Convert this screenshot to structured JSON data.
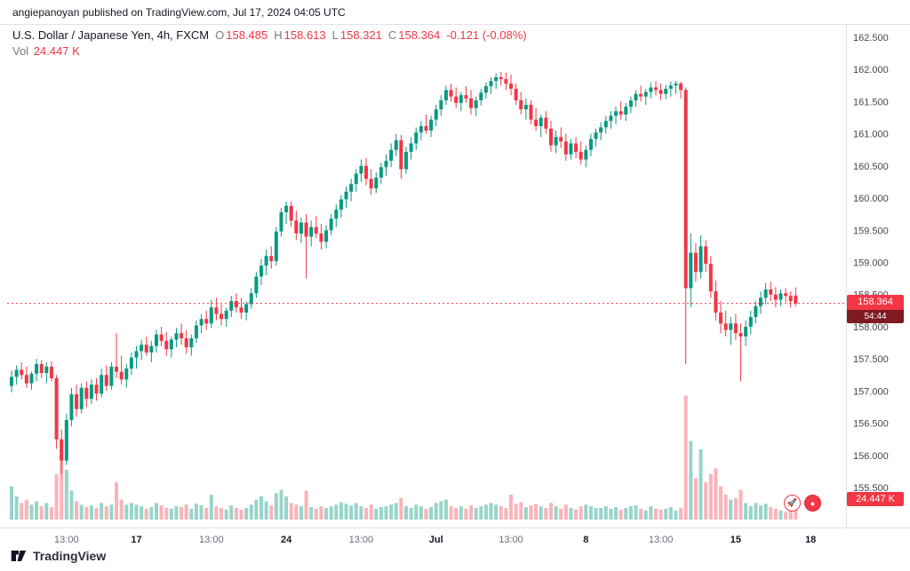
{
  "header": {
    "publish_line": "angiepanoyan published on TradingView.com, Jul 17, 2024 04:05 UTC"
  },
  "legend": {
    "title": "U.S. Dollar / Japanese Yen, 4h, FXCM",
    "o_label": "O",
    "o": "158.485",
    "h_label": "H",
    "h": "158.613",
    "l_label": "L",
    "l": "158.321",
    "c_label": "C",
    "c": "158.364",
    "change": "-0.121 (-0.08%)",
    "volume_label": "Vol",
    "volume_value": "24.447 K"
  },
  "badges": {
    "price": "158.364",
    "countdown": "54:44",
    "volume": "24.447 K"
  },
  "footer": {
    "brand": "TradingView"
  },
  "colors": {
    "up": "#089981",
    "down": "#f23645",
    "volume_up": "rgba(8,153,129,0.42)",
    "volume_down": "rgba(242,54,69,0.38)",
    "border": "#e0e3eb",
    "countdown_bg": "#7e1a22",
    "text_primary": "#131722",
    "text_secondary": "#787b86"
  },
  "chart_data": {
    "type": "candlestick",
    "symbol": "U.S. Dollar / Japanese Yen",
    "ticker": "USDJPY",
    "interval": "4h",
    "exchange": "FXCM",
    "last_price": 158.364,
    "ohlc_last": {
      "open": 158.485,
      "high": 158.613,
      "low": 158.321,
      "close": 158.364,
      "change": -0.121,
      "change_pct": -0.08
    },
    "volume_last": 24.447,
    "volume_unit": "K",
    "grid": false,
    "y_axis": {
      "min": 155.5,
      "max": 162.5,
      "step": 0.5,
      "labels": [
        "162.500",
        "162.000",
        "161.500",
        "161.000",
        "160.500",
        "160.000",
        "159.500",
        "159.000",
        "158.500",
        "158.000",
        "157.500",
        "157.000",
        "156.500",
        "156.000",
        "155.500"
      ]
    },
    "x_axis": {
      "labels": [
        {
          "index": 11,
          "text": "13:00",
          "strong": false
        },
        {
          "index": 25,
          "text": "17",
          "strong": true
        },
        {
          "index": 40,
          "text": "13:00",
          "strong": false
        },
        {
          "index": 55,
          "text": "24",
          "strong": true
        },
        {
          "index": 70,
          "text": "13:00",
          "strong": false
        },
        {
          "index": 85,
          "text": "Jul",
          "strong": true
        },
        {
          "index": 100,
          "text": "13:00",
          "strong": false
        },
        {
          "index": 115,
          "text": "8",
          "strong": true
        },
        {
          "index": 130,
          "text": "13:00",
          "strong": false
        },
        {
          "index": 145,
          "text": "15",
          "strong": true
        },
        {
          "index": 160,
          "text": "18",
          "strong": true
        }
      ]
    },
    "candles": [
      [
        157.08,
        157.32,
        156.98,
        157.22,
        40
      ],
      [
        157.22,
        157.4,
        157.1,
        157.33,
        28
      ],
      [
        157.33,
        157.45,
        157.18,
        157.25,
        20
      ],
      [
        157.25,
        157.38,
        157.05,
        157.12,
        24
      ],
      [
        157.12,
        157.3,
        157.02,
        157.27,
        18
      ],
      [
        157.27,
        157.5,
        157.15,
        157.42,
        22
      ],
      [
        157.42,
        157.48,
        157.2,
        157.28,
        16
      ],
      [
        157.28,
        157.45,
        157.12,
        157.38,
        20
      ],
      [
        157.38,
        157.46,
        157.15,
        157.2,
        15
      ],
      [
        157.2,
        157.25,
        156.1,
        156.25,
        55
      ],
      [
        156.25,
        156.4,
        155.7,
        155.92,
        85
      ],
      [
        155.92,
        156.65,
        155.85,
        156.55,
        60
      ],
      [
        156.55,
        157.05,
        156.45,
        156.95,
        35
      ],
      [
        156.95,
        157.1,
        156.6,
        156.72,
        22
      ],
      [
        156.72,
        157.12,
        156.65,
        157.05,
        18
      ],
      [
        157.05,
        157.15,
        156.75,
        156.88,
        15
      ],
      [
        156.88,
        157.18,
        156.8,
        157.1,
        17
      ],
      [
        157.1,
        157.2,
        156.85,
        156.96,
        14
      ],
      [
        156.96,
        157.35,
        156.9,
        157.25,
        20
      ],
      [
        157.25,
        157.4,
        157.0,
        157.08,
        16
      ],
      [
        157.08,
        157.45,
        157.02,
        157.38,
        18
      ],
      [
        157.38,
        157.9,
        157.2,
        157.3,
        45
      ],
      [
        157.3,
        157.55,
        157.1,
        157.18,
        24
      ],
      [
        157.18,
        157.42,
        157.05,
        157.35,
        18
      ],
      [
        157.35,
        157.6,
        157.25,
        157.52,
        20
      ],
      [
        157.52,
        157.7,
        157.35,
        157.62,
        18
      ],
      [
        157.62,
        157.8,
        157.48,
        157.72,
        16
      ],
      [
        157.72,
        157.85,
        157.55,
        157.6,
        13
      ],
      [
        157.6,
        157.78,
        157.45,
        157.7,
        15
      ],
      [
        157.7,
        157.95,
        157.6,
        157.88,
        20
      ],
      [
        157.88,
        158.0,
        157.7,
        157.78,
        17
      ],
      [
        157.78,
        157.92,
        157.55,
        157.65,
        14
      ],
      [
        157.65,
        157.85,
        157.52,
        157.8,
        13
      ],
      [
        157.8,
        157.98,
        157.68,
        157.9,
        16
      ],
      [
        157.9,
        158.05,
        157.72,
        157.82,
        15
      ],
      [
        157.82,
        157.95,
        157.58,
        157.68,
        18
      ],
      [
        157.68,
        157.88,
        157.55,
        157.82,
        13
      ],
      [
        157.82,
        158.1,
        157.75,
        158.02,
        19
      ],
      [
        158.02,
        158.2,
        157.9,
        158.12,
        17
      ],
      [
        158.12,
        158.25,
        157.95,
        158.05,
        14
      ],
      [
        158.05,
        158.42,
        157.98,
        158.3,
        30
      ],
      [
        158.3,
        158.45,
        158.1,
        158.2,
        16
      ],
      [
        158.2,
        158.35,
        158.02,
        158.12,
        14
      ],
      [
        158.12,
        158.3,
        158.0,
        158.25,
        12
      ],
      [
        158.25,
        158.48,
        158.15,
        158.4,
        17
      ],
      [
        158.4,
        158.52,
        158.22,
        158.3,
        14
      ],
      [
        158.3,
        158.45,
        158.12,
        158.22,
        12
      ],
      [
        158.22,
        158.4,
        158.1,
        158.35,
        14
      ],
      [
        158.35,
        158.6,
        158.28,
        158.52,
        18
      ],
      [
        158.52,
        158.85,
        158.45,
        158.78,
        24
      ],
      [
        158.78,
        159.05,
        158.65,
        158.95,
        28
      ],
      [
        158.95,
        159.2,
        158.8,
        159.1,
        22
      ],
      [
        159.1,
        159.25,
        158.9,
        159.02,
        17
      ],
      [
        159.02,
        159.55,
        158.95,
        159.48,
        32
      ],
      [
        159.48,
        159.85,
        159.4,
        159.78,
        36
      ],
      [
        159.78,
        159.95,
        159.6,
        159.88,
        28
      ],
      [
        159.88,
        159.95,
        159.55,
        159.65,
        20
      ],
      [
        159.65,
        159.8,
        159.35,
        159.45,
        18
      ],
      [
        159.45,
        159.7,
        159.3,
        159.62,
        16
      ],
      [
        159.62,
        159.75,
        158.75,
        159.4,
        35
      ],
      [
        159.4,
        159.65,
        159.25,
        159.55,
        15
      ],
      [
        159.55,
        159.72,
        159.38,
        159.45,
        13
      ],
      [
        159.45,
        159.6,
        159.2,
        159.32,
        16
      ],
      [
        159.32,
        159.58,
        159.22,
        159.5,
        14
      ],
      [
        159.5,
        159.75,
        159.42,
        159.68,
        16
      ],
      [
        159.68,
        159.9,
        159.55,
        159.82,
        18
      ],
      [
        159.82,
        160.05,
        159.7,
        159.98,
        21
      ],
      [
        159.98,
        160.18,
        159.85,
        160.1,
        19
      ],
      [
        160.1,
        160.3,
        159.95,
        160.22,
        17
      ],
      [
        160.22,
        160.45,
        160.1,
        160.38,
        20
      ],
      [
        160.38,
        160.6,
        160.25,
        160.5,
        16
      ],
      [
        160.5,
        160.62,
        160.2,
        160.3,
        14
      ],
      [
        160.3,
        160.45,
        160.05,
        160.15,
        18
      ],
      [
        160.15,
        160.4,
        160.08,
        160.32,
        13
      ],
      [
        160.32,
        160.55,
        160.22,
        160.48,
        15
      ],
      [
        160.48,
        160.68,
        160.35,
        160.58,
        16
      ],
      [
        160.58,
        160.85,
        160.48,
        160.75,
        18
      ],
      [
        160.75,
        161.0,
        160.65,
        160.9,
        20
      ],
      [
        160.9,
        160.98,
        160.3,
        160.45,
        26
      ],
      [
        160.45,
        160.8,
        160.38,
        160.72,
        16
      ],
      [
        160.72,
        160.95,
        160.6,
        160.85,
        14
      ],
      [
        160.85,
        161.1,
        160.75,
        161.02,
        18
      ],
      [
        161.02,
        161.2,
        160.9,
        161.12,
        16
      ],
      [
        161.12,
        161.3,
        161.0,
        161.05,
        13
      ],
      [
        161.05,
        161.28,
        160.95,
        161.22,
        15
      ],
      [
        161.22,
        161.45,
        161.12,
        161.38,
        20
      ],
      [
        161.38,
        161.6,
        161.28,
        161.52,
        22
      ],
      [
        161.52,
        161.75,
        161.45,
        161.68,
        24
      ],
      [
        161.68,
        161.78,
        161.5,
        161.58,
        16
      ],
      [
        161.58,
        161.72,
        161.4,
        161.48,
        14
      ],
      [
        161.48,
        161.65,
        161.35,
        161.6,
        16
      ],
      [
        161.6,
        161.74,
        161.48,
        161.55,
        13
      ],
      [
        161.55,
        161.68,
        161.3,
        161.4,
        17
      ],
      [
        161.4,
        161.58,
        161.28,
        161.52,
        14
      ],
      [
        161.52,
        161.7,
        161.44,
        161.64,
        16
      ],
      [
        161.64,
        161.8,
        161.55,
        161.74,
        18
      ],
      [
        161.74,
        161.88,
        161.62,
        161.82,
        20
      ],
      [
        161.82,
        161.94,
        161.7,
        161.88,
        18
      ],
      [
        161.88,
        161.96,
        161.75,
        161.85,
        16
      ],
      [
        161.85,
        161.95,
        161.68,
        161.78,
        14
      ],
      [
        161.78,
        161.92,
        161.6,
        161.7,
        30
      ],
      [
        161.7,
        161.78,
        161.45,
        161.52,
        19
      ],
      [
        161.52,
        161.65,
        161.3,
        161.38,
        21
      ],
      [
        161.38,
        161.55,
        161.22,
        161.45,
        15
      ],
      [
        161.45,
        161.52,
        161.15,
        161.22,
        17
      ],
      [
        161.22,
        161.4,
        161.05,
        161.12,
        19
      ],
      [
        161.12,
        161.3,
        160.95,
        161.25,
        16
      ],
      [
        161.25,
        161.35,
        161.0,
        161.08,
        14
      ],
      [
        161.08,
        161.2,
        160.72,
        160.82,
        20
      ],
      [
        160.82,
        161.05,
        160.7,
        160.95,
        16
      ],
      [
        160.95,
        161.1,
        160.78,
        160.88,
        13
      ],
      [
        160.88,
        161.0,
        160.58,
        160.68,
        18
      ],
      [
        160.68,
        160.92,
        160.6,
        160.85,
        14
      ],
      [
        160.85,
        160.95,
        160.62,
        160.72,
        12
      ],
      [
        160.72,
        160.88,
        160.52,
        160.6,
        16
      ],
      [
        160.6,
        160.82,
        160.48,
        160.75,
        18
      ],
      [
        160.75,
        161.0,
        160.65,
        160.92,
        16
      ],
      [
        160.92,
        161.08,
        160.8,
        161.02,
        14
      ],
      [
        161.02,
        161.18,
        160.9,
        161.1,
        14
      ],
      [
        161.1,
        161.28,
        161.0,
        161.2,
        16
      ],
      [
        161.2,
        161.35,
        161.08,
        161.28,
        13
      ],
      [
        161.28,
        161.42,
        161.15,
        161.35,
        15
      ],
      [
        161.35,
        161.5,
        161.22,
        161.3,
        12
      ],
      [
        161.3,
        161.48,
        161.2,
        161.42,
        14
      ],
      [
        161.42,
        161.58,
        161.32,
        161.52,
        16
      ],
      [
        161.52,
        161.68,
        161.42,
        161.62,
        17
      ],
      [
        161.62,
        161.75,
        161.5,
        161.58,
        13
      ],
      [
        161.58,
        161.7,
        161.45,
        161.65,
        11
      ],
      [
        161.65,
        161.8,
        161.55,
        161.72,
        16
      ],
      [
        161.72,
        161.82,
        161.6,
        161.68,
        13
      ],
      [
        161.68,
        161.78,
        161.52,
        161.62,
        12
      ],
      [
        161.62,
        161.76,
        161.54,
        161.7,
        13
      ],
      [
        161.7,
        161.81,
        161.58,
        161.75,
        15
      ],
      [
        161.75,
        161.82,
        161.62,
        161.78,
        11
      ],
      [
        161.78,
        161.81,
        161.55,
        161.68,
        14
      ],
      [
        161.68,
        161.72,
        157.42,
        158.6,
        150
      ],
      [
        158.6,
        159.45,
        158.3,
        159.15,
        95
      ],
      [
        159.15,
        159.3,
        158.7,
        158.85,
        50
      ],
      [
        158.85,
        159.42,
        158.75,
        159.25,
        85
      ],
      [
        159.25,
        159.35,
        158.85,
        158.98,
        45
      ],
      [
        158.98,
        159.1,
        158.45,
        158.55,
        55
      ],
      [
        158.55,
        158.72,
        158.1,
        158.22,
        62
      ],
      [
        158.22,
        158.4,
        157.9,
        158.05,
        40
      ],
      [
        158.05,
        158.25,
        157.85,
        157.95,
        30
      ],
      [
        157.95,
        158.15,
        157.72,
        158.05,
        24
      ],
      [
        158.05,
        158.2,
        157.8,
        157.9,
        26
      ],
      [
        157.9,
        158.05,
        157.15,
        157.85,
        36
      ],
      [
        157.85,
        158.1,
        157.7,
        158.0,
        20
      ],
      [
        158.0,
        158.25,
        157.88,
        158.15,
        16
      ],
      [
        158.15,
        158.4,
        158.05,
        158.32,
        20
      ],
      [
        158.32,
        158.55,
        158.2,
        158.45,
        17
      ],
      [
        158.45,
        158.68,
        158.35,
        158.58,
        19
      ],
      [
        158.58,
        158.7,
        158.4,
        158.5,
        15
      ],
      [
        158.5,
        158.62,
        158.3,
        158.42,
        13
      ],
      [
        158.42,
        158.58,
        158.32,
        158.52,
        11
      ],
      [
        158.52,
        158.6,
        158.38,
        158.48,
        9
      ],
      [
        158.48,
        158.55,
        158.3,
        158.4,
        12
      ],
      [
        158.485,
        158.613,
        158.321,
        158.364,
        24.447
      ]
    ]
  }
}
